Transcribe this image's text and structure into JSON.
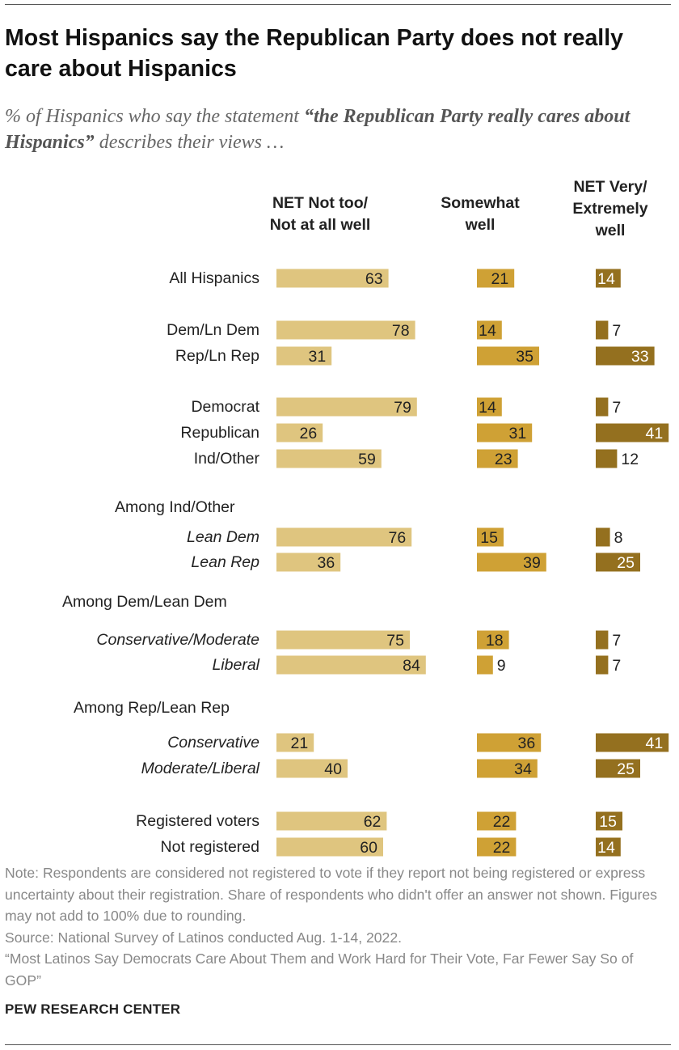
{
  "title": "Most Hispanics say the Republican Party does not really care about Hispanics",
  "subtitle": {
    "prefix": "% of Hispanics who say the statement ",
    "quote": "“the Republican Party really cares about Hispanics”",
    "suffix": " describes their views …"
  },
  "columns": [
    {
      "line1": "NET Not too/",
      "line2": "Not at all well",
      "line3": ""
    },
    {
      "line1": "Somewhat",
      "line2": "well",
      "line3": ""
    },
    {
      "line1": "NET Very/",
      "line2": "Extremely",
      "line3": "well"
    }
  ],
  "colors": {
    "net_not_well": "#dfc57f",
    "somewhat_well": "#cfa135",
    "net_very_well": "#94701f",
    "text_dark": "#222222",
    "text_on_dark": "#ffffff"
  },
  "chart_data": {
    "type": "bar",
    "orientation": "horizontal",
    "series": [
      {
        "name": "NET Not too/ Not at all well",
        "values": [
          63,
          78,
          31,
          79,
          26,
          59,
          76,
          36,
          75,
          84,
          21,
          40,
          62,
          60
        ]
      },
      {
        "name": "Somewhat well",
        "values": [
          21,
          14,
          35,
          14,
          31,
          23,
          15,
          39,
          18,
          9,
          36,
          34,
          22,
          22
        ]
      },
      {
        "name": "NET Very/ Extremely well",
        "values": [
          14,
          7,
          33,
          7,
          41,
          12,
          8,
          25,
          7,
          7,
          41,
          25,
          15,
          14
        ]
      }
    ],
    "categories": [
      "All Hispanics",
      "Dem/Ln Dem",
      "Rep/Ln Rep",
      "Democrat",
      "Republican",
      "Ind/Other",
      "Lean Dem",
      "Lean Rep",
      "Conservative/Moderate",
      "Liberal",
      "Conservative",
      "Moderate/Liberal",
      "Registered voters",
      "Not registered"
    ],
    "italic_categories": [
      "Lean Dem",
      "Lean Rep",
      "Conservative/Moderate",
      "Liberal",
      "Conservative",
      "Moderate/Liberal"
    ],
    "group_headers": [
      "Among Ind/Other",
      "Among Dem/Lean Dem",
      "Among Rep/Lean Rep"
    ]
  },
  "notes": [
    "Note: Respondents are considered not registered to vote if they report not being registered or express uncertainty about their registration. Share of respondents who didn't offer an answer not shown. Figures may not add to 100% due to rounding.",
    "Source: National Survey of Latinos conducted Aug. 1-14, 2022.",
    "“Most Latinos Say Democrats Care About Them and Work Hard for Their Vote, Far Fewer Say So of GOP”"
  ],
  "brand": "PEW RESEARCH CENTER"
}
